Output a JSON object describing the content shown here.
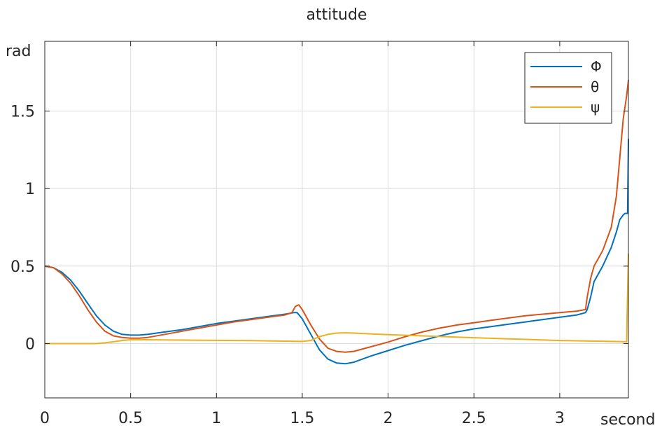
{
  "chart_data": {
    "type": "line",
    "title": "attitude",
    "xlabel": "second",
    "ylabel": "rad",
    "xlim": [
      0,
      3.4
    ],
    "ylim": [
      -0.35,
      1.95
    ],
    "xticks": [
      0,
      0.5,
      1,
      1.5,
      2,
      2.5,
      3
    ],
    "xtick_labels": [
      "0",
      "0.5",
      "1",
      "1.5",
      "2",
      "2.5",
      "3"
    ],
    "yticks": [
      0,
      0.5,
      1,
      1.5
    ],
    "ytick_labels": [
      "0",
      "0.5",
      "1",
      "1.5"
    ],
    "grid": true,
    "legend_position": "top-right",
    "series": [
      {
        "name": "Φ",
        "color": "#0072BD",
        "x": [
          0,
          0.05,
          0.1,
          0.15,
          0.2,
          0.25,
          0.3,
          0.35,
          0.4,
          0.45,
          0.5,
          0.55,
          0.6,
          0.7,
          0.8,
          0.9,
          1.0,
          1.1,
          1.2,
          1.3,
          1.4,
          1.45,
          1.47,
          1.5,
          1.55,
          1.6,
          1.65,
          1.7,
          1.75,
          1.8,
          1.9,
          2.0,
          2.1,
          2.2,
          2.3,
          2.4,
          2.5,
          2.6,
          2.7,
          2.8,
          2.9,
          3.0,
          3.1,
          3.15,
          3.16,
          3.18,
          3.2,
          3.25,
          3.3,
          3.33,
          3.35,
          3.37,
          3.38,
          3.39,
          3.395,
          3.4
        ],
        "values": [
          0.5,
          0.49,
          0.46,
          0.41,
          0.34,
          0.26,
          0.18,
          0.12,
          0.08,
          0.06,
          0.055,
          0.055,
          0.06,
          0.075,
          0.09,
          0.11,
          0.13,
          0.145,
          0.16,
          0.175,
          0.19,
          0.2,
          0.2,
          0.16,
          0.06,
          -0.04,
          -0.1,
          -0.125,
          -0.13,
          -0.12,
          -0.08,
          -0.045,
          -0.01,
          0.02,
          0.05,
          0.075,
          0.095,
          0.11,
          0.125,
          0.14,
          0.155,
          0.17,
          0.185,
          0.2,
          0.22,
          0.3,
          0.4,
          0.5,
          0.62,
          0.72,
          0.8,
          0.83,
          0.84,
          0.84,
          0.84,
          1.32
        ]
      },
      {
        "name": "θ",
        "color": "#D95319",
        "x": [
          0,
          0.05,
          0.1,
          0.15,
          0.2,
          0.25,
          0.3,
          0.35,
          0.4,
          0.45,
          0.5,
          0.55,
          0.6,
          0.7,
          0.8,
          0.9,
          1.0,
          1.1,
          1.2,
          1.3,
          1.4,
          1.44,
          1.46,
          1.48,
          1.5,
          1.55,
          1.6,
          1.65,
          1.7,
          1.75,
          1.8,
          1.9,
          2.0,
          2.1,
          2.2,
          2.3,
          2.4,
          2.5,
          2.6,
          2.7,
          2.8,
          2.9,
          3.0,
          3.1,
          3.15,
          3.16,
          3.18,
          3.2,
          3.25,
          3.3,
          3.33,
          3.35,
          3.37,
          3.39,
          3.4
        ],
        "values": [
          0.5,
          0.49,
          0.45,
          0.39,
          0.31,
          0.22,
          0.14,
          0.08,
          0.05,
          0.04,
          0.035,
          0.035,
          0.04,
          0.06,
          0.08,
          0.1,
          0.12,
          0.14,
          0.155,
          0.17,
          0.185,
          0.2,
          0.24,
          0.25,
          0.22,
          0.12,
          0.03,
          -0.03,
          -0.05,
          -0.055,
          -0.05,
          -0.02,
          0.01,
          0.045,
          0.075,
          0.1,
          0.12,
          0.135,
          0.15,
          0.165,
          0.18,
          0.19,
          0.2,
          0.21,
          0.22,
          0.3,
          0.42,
          0.5,
          0.6,
          0.75,
          0.95,
          1.2,
          1.45,
          1.6,
          1.7
        ]
      },
      {
        "name": "ψ",
        "color": "#EDB120",
        "x": [
          0,
          0.2,
          0.3,
          0.35,
          0.4,
          0.45,
          0.5,
          0.6,
          0.8,
          1.0,
          1.2,
          1.4,
          1.5,
          1.55,
          1.6,
          1.65,
          1.7,
          1.75,
          1.8,
          2.0,
          2.5,
          3.0,
          3.3,
          3.39,
          3.392,
          3.4
        ],
        "values": [
          0,
          0,
          0,
          0.005,
          0.012,
          0.02,
          0.025,
          0.025,
          0.023,
          0.021,
          0.019,
          0.016,
          0.014,
          0.02,
          0.045,
          0.06,
          0.068,
          0.07,
          0.068,
          0.058,
          0.038,
          0.02,
          0.014,
          0.012,
          0.15,
          0.58
        ]
      }
    ]
  }
}
